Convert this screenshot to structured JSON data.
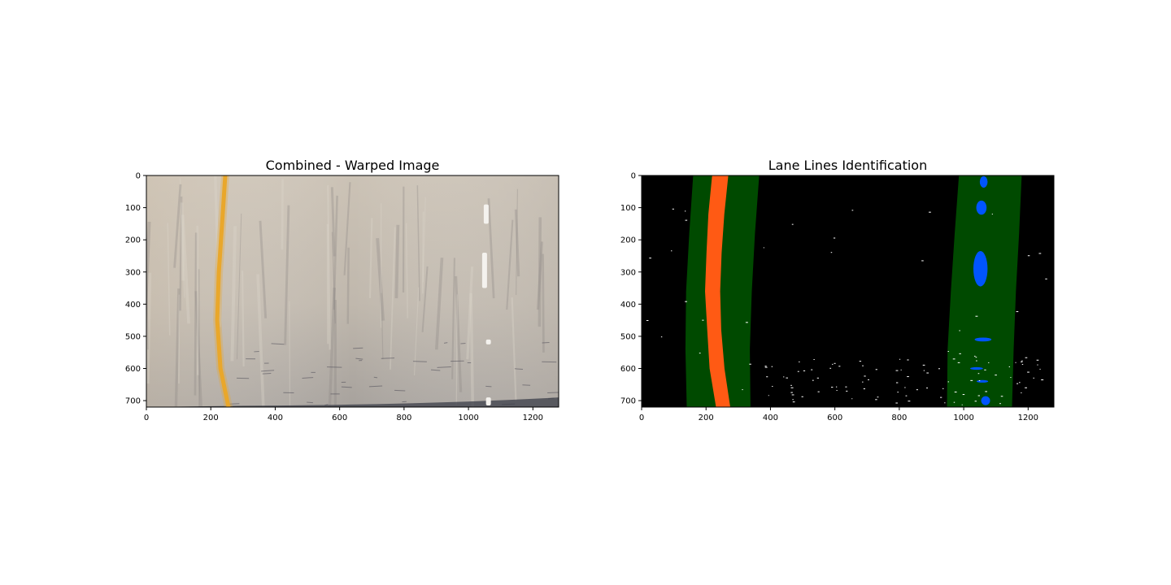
{
  "chart_data": [
    {
      "type": "image",
      "title": "Combined - Warped Image",
      "xlabel": "",
      "ylabel": "",
      "xlim": [
        0,
        1280
      ],
      "ylim": [
        720,
        0
      ],
      "xticks": [
        0,
        200,
        400,
        600,
        800,
        1000,
        1200
      ],
      "yticks": [
        0,
        100,
        200,
        300,
        400,
        500,
        600,
        700
      ],
      "road_color": "#c4bcb1",
      "lane_left": {
        "color": "#e9a72b",
        "points": [
          [
            245,
            0
          ],
          [
            235,
            150
          ],
          [
            225,
            300
          ],
          [
            220,
            450
          ],
          [
            230,
            600
          ],
          [
            255,
            720
          ]
        ]
      },
      "lane_right_dashes": [
        {
          "x": 1055,
          "y0": 90,
          "y1": 150
        },
        {
          "x": 1050,
          "y0": 240,
          "y1": 350
        },
        {
          "x": 1062,
          "y0": 510,
          "y1": 525
        },
        {
          "x": 1062,
          "y0": 690,
          "y1": 715
        }
      ]
    },
    {
      "type": "image",
      "title": "Lane Lines Identification",
      "xlabel": "",
      "ylabel": "",
      "xlim": [
        0,
        1280
      ],
      "ylim": [
        720,
        0
      ],
      "xticks": [
        0,
        200,
        400,
        600,
        800,
        1000,
        1200
      ],
      "yticks": [
        0,
        100,
        200,
        300,
        400,
        500,
        600,
        700
      ],
      "background_color": "#000000",
      "search_window_color": "#004a00",
      "left_pixels_color": "#ff5a14",
      "right_pixels_color": "#0055ff",
      "left_band": {
        "left_edge": [
          [
            160,
            0
          ],
          [
            148,
            180
          ],
          [
            138,
            360
          ],
          [
            136,
            540
          ],
          [
            140,
            720
          ]
        ],
        "right_edge": [
          [
            365,
            0
          ],
          [
            352,
            180
          ],
          [
            342,
            360
          ],
          [
            336,
            540
          ],
          [
            338,
            720
          ]
        ]
      },
      "right_band": {
        "left_edge": [
          [
            985,
            0
          ],
          [
            972,
            180
          ],
          [
            960,
            360
          ],
          [
            950,
            540
          ],
          [
            948,
            720
          ]
        ],
        "right_edge": [
          [
            1180,
            0
          ],
          [
            1172,
            180
          ],
          [
            1162,
            360
          ],
          [
            1155,
            540
          ],
          [
            1150,
            720
          ]
        ]
      }
    }
  ]
}
